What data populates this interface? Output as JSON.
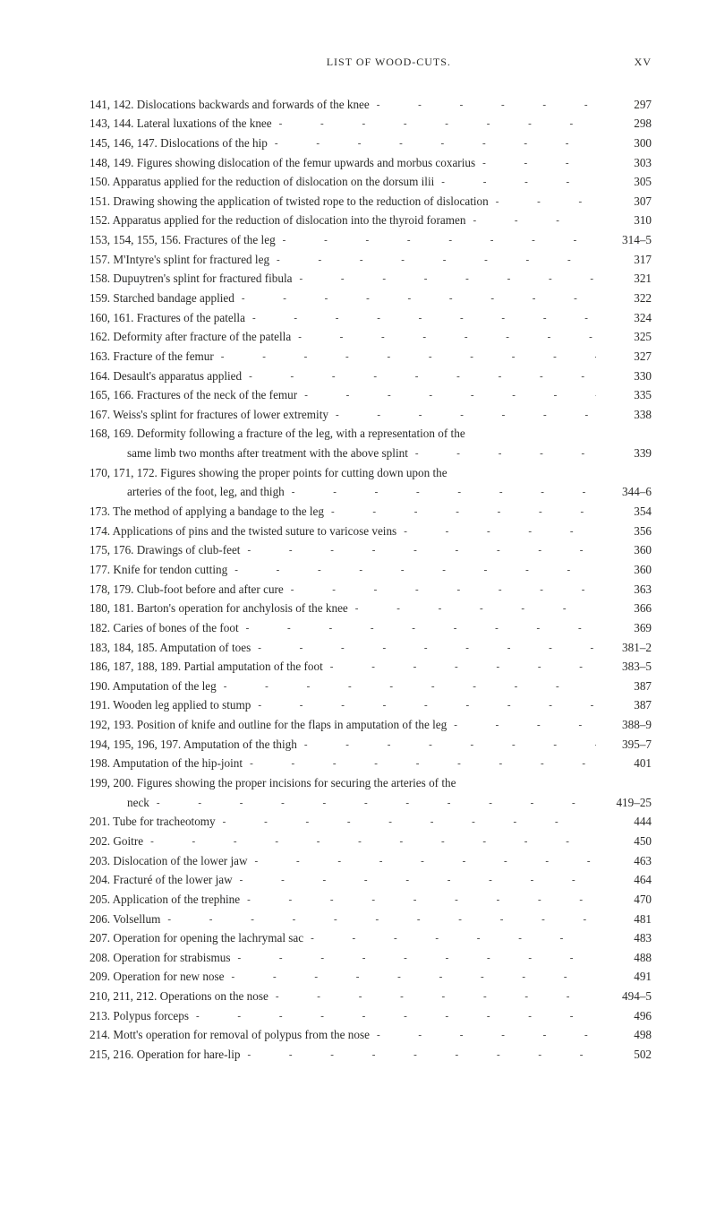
{
  "header": {
    "title": "LIST OF WOOD-CUTS.",
    "page_label": "XV"
  },
  "leader_glyph": "-",
  "entries": [
    {
      "text": "141, 142. Dislocations backwards and forwards of the knee",
      "page": "297",
      "indent": false
    },
    {
      "text": "143, 144. Lateral luxations of the knee",
      "page": "298",
      "indent": false
    },
    {
      "text": "145, 146, 147. Dislocations of the hip",
      "page": "300",
      "indent": false
    },
    {
      "text": "148, 149. Figures showing dislocation of the femur upwards and morbus coxarius",
      "page": "303",
      "indent": false
    },
    {
      "text": "150. Apparatus applied for the reduction of dislocation on the dorsum ilii",
      "page": "305",
      "indent": false
    },
    {
      "text": "151. Drawing showing the application of twisted rope to the reduction of dislocation",
      "page": "307",
      "indent": false
    },
    {
      "text": "152. Apparatus applied for the reduction of dislocation into the thyroid foramen",
      "page": "310",
      "indent": false
    },
    {
      "text": "153, 154, 155, 156. Fractures of the leg",
      "page": "314–5",
      "indent": false
    },
    {
      "text": "157. M'Intyre's splint for fractured leg",
      "page": "317",
      "indent": false
    },
    {
      "text": "158. Dupuytren's splint for fractured fibula",
      "page": "321",
      "indent": false
    },
    {
      "text": "159. Starched bandage applied",
      "page": "322",
      "indent": false
    },
    {
      "text": "160, 161. Fractures of the patella",
      "page": "324",
      "indent": false
    },
    {
      "text": "162. Deformity after fracture of the patella",
      "page": "325",
      "indent": false
    },
    {
      "text": "163. Fracture of the femur",
      "page": "327",
      "indent": false
    },
    {
      "text": "164. Desault's apparatus applied",
      "page": "330",
      "indent": false
    },
    {
      "text": "165, 166. Fractures of the neck of the femur",
      "page": "335",
      "indent": false
    },
    {
      "text": "167. Weiss's splint for fractures of lower extremity",
      "page": "338",
      "indent": false
    },
    {
      "text": "168, 169. Deformity following a fracture of the leg, with a representation of the",
      "page": "",
      "indent": false,
      "noleader": true
    },
    {
      "text": "same limb two months after treatment with the above splint",
      "page": "339",
      "indent": true
    },
    {
      "text": "170, 171, 172. Figures showing the proper points for cutting down upon the",
      "page": "",
      "indent": false,
      "noleader": true
    },
    {
      "text": "arteries of the foot, leg, and thigh",
      "page": "344–6",
      "indent": true
    },
    {
      "text": "173. The method of applying a bandage to the leg",
      "page": "354",
      "indent": false
    },
    {
      "text": "174. Applications of pins and the twisted suture to varicose veins",
      "page": "356",
      "indent": false
    },
    {
      "text": "175, 176. Drawings of club-feet",
      "page": "360",
      "indent": false
    },
    {
      "text": "177. Knife for tendon cutting",
      "page": "360",
      "indent": false
    },
    {
      "text": "178, 179. Club-foot before and after cure",
      "page": "363",
      "indent": false
    },
    {
      "text": "180, 181. Barton's operation for anchylosis of the knee",
      "page": "366",
      "indent": false
    },
    {
      "text": "182. Caries of bones of the foot",
      "page": "369",
      "indent": false
    },
    {
      "text": "183, 184, 185. Amputation of toes",
      "page": "381–2",
      "indent": false
    },
    {
      "text": "186, 187, 188, 189. Partial amputation of the foot",
      "page": "383–5",
      "indent": false
    },
    {
      "text": "190. Amputation of the leg",
      "page": "387",
      "indent": false
    },
    {
      "text": "191. Wooden leg applied to stump",
      "page": "387",
      "indent": false
    },
    {
      "text": "192, 193. Position of knife and outline for the flaps in amputation of the leg",
      "page": "388–9",
      "indent": false
    },
    {
      "text": "194, 195, 196, 197. Amputation of the thigh",
      "page": "395–7",
      "indent": false
    },
    {
      "text": "198. Amputation of the hip-joint",
      "page": "401",
      "indent": false
    },
    {
      "text": "199, 200. Figures showing the proper incisions for securing the arteries of the",
      "page": "",
      "indent": false,
      "noleader": true
    },
    {
      "text": "neck",
      "page": "419–25",
      "indent": true
    },
    {
      "text": "201. Tube for tracheotomy",
      "page": "444",
      "indent": false
    },
    {
      "text": "202. Goitre",
      "page": "450",
      "indent": false
    },
    {
      "text": "203. Dislocation of the lower jaw",
      "page": "463",
      "indent": false
    },
    {
      "text": "204. Fracturé of the lower jaw",
      "page": "464",
      "indent": false
    },
    {
      "text": "205. Application of the trephine",
      "page": "470",
      "indent": false
    },
    {
      "text": "206. Volsellum",
      "page": "481",
      "indent": false
    },
    {
      "text": "207. Operation for opening the lachrymal sac",
      "page": "483",
      "indent": false
    },
    {
      "text": "208. Operation for strabismus",
      "page": "488",
      "indent": false
    },
    {
      "text": "209. Operation for new nose",
      "page": "491",
      "indent": false
    },
    {
      "text": "210, 211, 212. Operations on the nose",
      "page": "494–5",
      "indent": false
    },
    {
      "text": "213. Polypus forceps",
      "page": "496",
      "indent": false
    },
    {
      "text": "214. Mott's operation for removal of polypus from the nose",
      "page": "498",
      "indent": false
    },
    {
      "text": "215, 216. Operation for hare-lip",
      "page": "502",
      "indent": false
    }
  ]
}
